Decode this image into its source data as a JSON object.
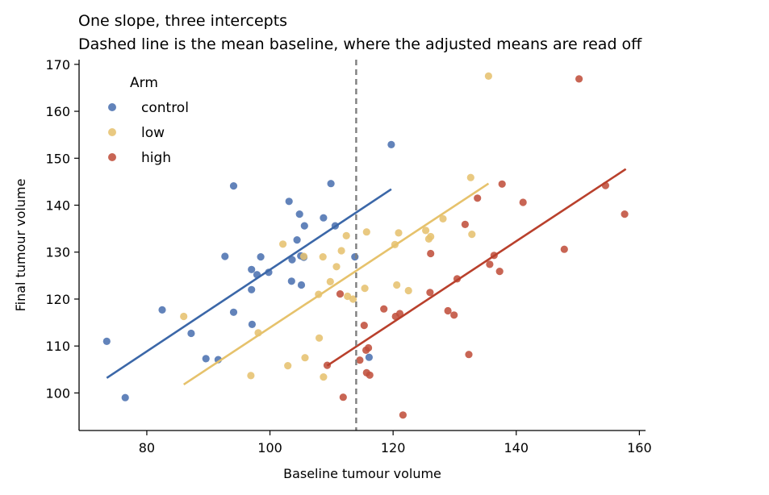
{
  "chart_data": {
    "type": "scatter",
    "title": "One slope, three intercepts",
    "subtitle": "Dashed line is the mean baseline, where the adjusted means are read off",
    "xlabel": "Baseline tumour volume",
    "ylabel": "Final tumour volume",
    "xlim": [
      69,
      161
    ],
    "ylim": [
      92,
      171
    ],
    "xticks": [
      80,
      100,
      120,
      140,
      160
    ],
    "yticks": [
      100,
      110,
      120,
      130,
      140,
      150,
      160,
      170
    ],
    "grid": false,
    "legend": {
      "title": "Arm",
      "position": "top-left"
    },
    "reference_line": {
      "x": 114,
      "style": "dashed",
      "color": "#7f7f7f"
    },
    "series": [
      {
        "name": "control",
        "color": "#4c72b0",
        "line_color": "#3b67a8",
        "fit": {
          "x": [
            73.5,
            119.7
          ],
          "y": [
            103.2,
            143.4
          ]
        },
        "points": [
          [
            73.5,
            111
          ],
          [
            76.5,
            99
          ],
          [
            82.5,
            117.7
          ],
          [
            87.2,
            112.7
          ],
          [
            89.6,
            107.3
          ],
          [
            91.6,
            107.1
          ],
          [
            92.7,
            129.1
          ],
          [
            94.1,
            144.1
          ],
          [
            94.1,
            117.2
          ],
          [
            97.0,
            126.3
          ],
          [
            97.0,
            122.0
          ],
          [
            97.1,
            114.6
          ],
          [
            97.9,
            125.2
          ],
          [
            98.5,
            129.0
          ],
          [
            99.8,
            125.7
          ],
          [
            103.1,
            140.8
          ],
          [
            103.6,
            128.4
          ],
          [
            103.5,
            123.8
          ],
          [
            104.4,
            132.6
          ],
          [
            104.8,
            138.1
          ],
          [
            105.0,
            129.2
          ],
          [
            105.1,
            123.0
          ],
          [
            105.6,
            135.6
          ],
          [
            105.5,
            128.9
          ],
          [
            108.7,
            137.3
          ],
          [
            109.9,
            144.6
          ],
          [
            110.6,
            135.6
          ],
          [
            113.8,
            129.0
          ],
          [
            116.1,
            107.6
          ],
          [
            119.7,
            152.9
          ]
        ]
      },
      {
        "name": "low",
        "color": "#e6c270",
        "line_color": "#e6c26c",
        "fit": {
          "x": [
            86.0,
            135.5
          ],
          "y": [
            101.8,
            144.6
          ]
        },
        "points": [
          [
            86.0,
            116.3
          ],
          [
            96.9,
            103.7
          ],
          [
            98.1,
            112.8
          ],
          [
            102.1,
            131.7
          ],
          [
            102.9,
            105.8
          ],
          [
            105.5,
            129.1
          ],
          [
            105.7,
            107.5
          ],
          [
            107.9,
            121.0
          ],
          [
            108.0,
            111.7
          ],
          [
            108.6,
            129.0
          ],
          [
            108.7,
            103.4
          ],
          [
            109.8,
            123.7
          ],
          [
            110.8,
            126.9
          ],
          [
            111.6,
            130.3
          ],
          [
            112.4,
            133.5
          ],
          [
            112.6,
            120.6
          ],
          [
            113.5,
            120.0
          ],
          [
            115.4,
            122.3
          ],
          [
            115.7,
            134.3
          ],
          [
            120.3,
            131.6
          ],
          [
            120.6,
            123.0
          ],
          [
            120.9,
            134.1
          ],
          [
            122.5,
            121.8
          ],
          [
            125.3,
            134.6
          ],
          [
            125.8,
            132.8
          ],
          [
            126.1,
            133.3
          ],
          [
            128.1,
            137.1
          ],
          [
            132.6,
            145.9
          ],
          [
            132.8,
            133.8
          ],
          [
            135.5,
            167.5
          ]
        ]
      },
      {
        "name": "high",
        "color": "#c0503c",
        "line_color": "#b9402c",
        "fit": {
          "x": [
            109.3,
            157.8
          ],
          "y": [
            105.8,
            147.7
          ]
        },
        "points": [
          [
            109.3,
            105.9
          ],
          [
            111.4,
            121.1
          ],
          [
            111.9,
            99.1
          ],
          [
            114.6,
            107.0
          ],
          [
            115.3,
            114.4
          ],
          [
            115.6,
            109.1
          ],
          [
            115.7,
            104.3
          ],
          [
            116.0,
            109.6
          ],
          [
            116.2,
            103.8
          ],
          [
            118.5,
            117.9
          ],
          [
            120.4,
            116.3
          ],
          [
            121.1,
            116.9
          ],
          [
            121.6,
            95.3
          ],
          [
            126.0,
            121.4
          ],
          [
            126.1,
            129.7
          ],
          [
            128.9,
            117.5
          ],
          [
            129.9,
            116.6
          ],
          [
            130.4,
            124.3
          ],
          [
            131.7,
            135.9
          ],
          [
            132.3,
            108.2
          ],
          [
            133.7,
            141.5
          ],
          [
            135.7,
            127.4
          ],
          [
            136.4,
            129.3
          ],
          [
            137.3,
            125.9
          ],
          [
            137.7,
            144.5
          ],
          [
            141.1,
            140.6
          ],
          [
            147.8,
            130.6
          ],
          [
            150.2,
            166.9
          ],
          [
            154.5,
            144.2
          ],
          [
            157.6,
            138.1
          ]
        ]
      }
    ]
  }
}
